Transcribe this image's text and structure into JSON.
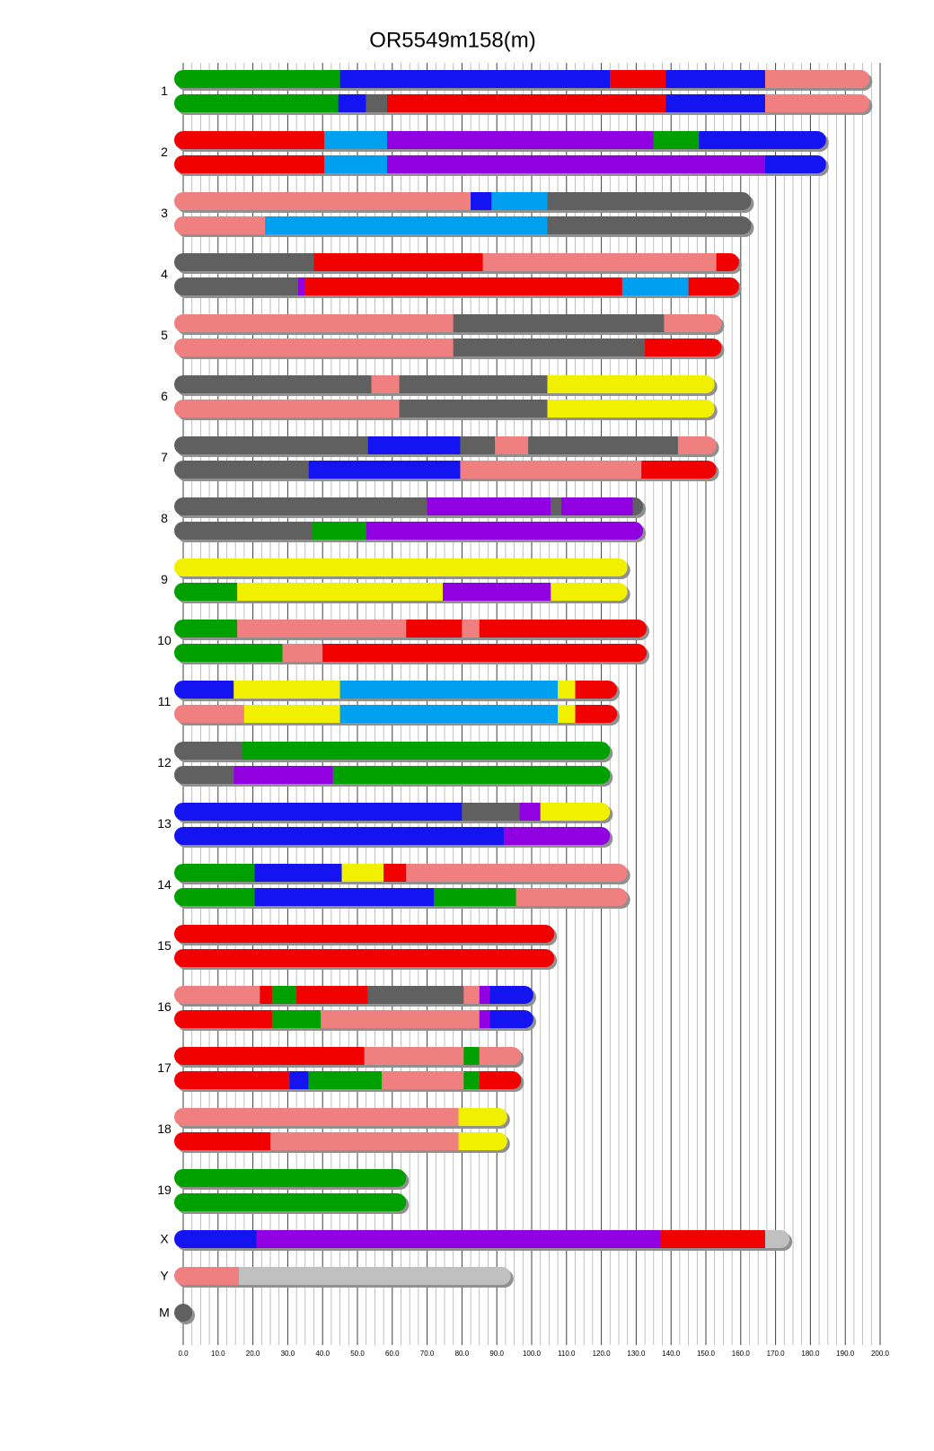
{
  "chart_data": {
    "type": "ideogram",
    "title": "OR5549m158(m)",
    "xlim": [
      0,
      200
    ],
    "xticks": [
      {
        "value": 0,
        "label": "0.0"
      },
      {
        "value": 10,
        "label": "10.0"
      },
      {
        "value": 20,
        "label": "20.0"
      },
      {
        "value": 30,
        "label": "30.0"
      },
      {
        "value": 40,
        "label": "40.0"
      },
      {
        "value": 50,
        "label": "50.0"
      },
      {
        "value": 60,
        "label": "60.0"
      },
      {
        "value": 70,
        "label": "70.0"
      },
      {
        "value": 80,
        "label": "80.0"
      },
      {
        "value": 90,
        "label": "90.0"
      },
      {
        "value": 100,
        "label": "100.0"
      },
      {
        "value": 110,
        "label": "110.0"
      },
      {
        "value": 120,
        "label": "120.0"
      },
      {
        "value": 130,
        "label": "130.0"
      },
      {
        "value": 140,
        "label": "140.0"
      },
      {
        "value": 150,
        "label": "150.0"
      },
      {
        "value": 160,
        "label": "160.0"
      },
      {
        "value": 170,
        "label": "170.0"
      },
      {
        "value": 180,
        "label": "180.0"
      },
      {
        "value": 190,
        "label": "190.0"
      },
      {
        "value": 200,
        "label": "200.0"
      }
    ],
    "grid": true,
    "chromosomes": [
      {
        "name": "1",
        "tracks": [
          {
            "lengths": [
              45,
              77.5,
              16,
              28.5,
              30
            ],
            "colors": [
              "#00a000",
              "#1414f0",
              "#f00000",
              "#1414f0",
              "#f08080"
            ]
          },
          {
            "lengths": [
              44.5,
              8,
              6,
              80,
              28.5,
              30
            ],
            "colors": [
              "#00a000",
              "#1414f0",
              "#606060",
              "#f00000",
              "#1414f0",
              "#f08080"
            ]
          }
        ]
      },
      {
        "name": "2",
        "tracks": [
          {
            "lengths": [
              40.5,
              18,
              76.5,
              13,
              36.5
            ],
            "colors": [
              "#f00000",
              "#00a0f0",
              "#9000e0",
              "#00a000",
              "#1414f0"
            ]
          },
          {
            "lengths": [
              40.5,
              18,
              108.5,
              17.5
            ],
            "colors": [
              "#f00000",
              "#00a0f0",
              "#9000e0",
              "#1414f0"
            ]
          }
        ]
      },
      {
        "name": "3",
        "tracks": [
          {
            "lengths": [
              82.5,
              6,
              16,
              58.5
            ],
            "colors": [
              "#f08080",
              "#1414f0",
              "#00a0f0",
              "#606060"
            ]
          },
          {
            "lengths": [
              23.5,
              81,
              58.5
            ],
            "colors": [
              "#f08080",
              "#00a0f0",
              "#606060"
            ]
          }
        ]
      },
      {
        "name": "4",
        "tracks": [
          {
            "lengths": [
              37.5,
              48.5,
              67,
              6.5
            ],
            "colors": [
              "#606060",
              "#f00000",
              "#f08080",
              "#f00000"
            ]
          },
          {
            "lengths": [
              33,
              2,
              91,
              19,
              14.5
            ],
            "colors": [
              "#606060",
              "#9000e0",
              "#f00000",
              "#00a0f0",
              "#f00000"
            ]
          }
        ]
      },
      {
        "name": "5",
        "tracks": [
          {
            "lengths": [
              77.5,
              60.5,
              16.5
            ],
            "colors": [
              "#f08080",
              "#606060",
              "#f08080"
            ]
          },
          {
            "lengths": [
              77.5,
              55,
              22
            ],
            "colors": [
              "#f08080",
              "#606060",
              "#f00000"
            ]
          }
        ]
      },
      {
        "name": "6",
        "tracks": [
          {
            "lengths": [
              54,
              8,
              42.5,
              48
            ],
            "colors": [
              "#606060",
              "#f08080",
              "#606060",
              "#f0f000"
            ]
          },
          {
            "lengths": [
              62,
              42.5,
              48
            ],
            "colors": [
              "#f08080",
              "#606060",
              "#f0f000"
            ]
          }
        ]
      },
      {
        "name": "7",
        "tracks": [
          {
            "lengths": [
              53,
              26.5,
              10,
              9.5,
              43,
              11
            ],
            "colors": [
              "#606060",
              "#1414f0",
              "#606060",
              "#f08080",
              "#606060",
              "#f08080"
            ]
          },
          {
            "lengths": [
              36,
              43.5,
              52,
              21.5
            ],
            "colors": [
              "#606060",
              "#1414f0",
              "#f08080",
              "#f00000"
            ]
          }
        ]
      },
      {
        "name": "8",
        "tracks": [
          {
            "lengths": [
              70,
              35.5,
              3,
              20.5,
              3
            ],
            "colors": [
              "#606060",
              "#9000e0",
              "#606060",
              "#9000e0",
              "#606060"
            ]
          },
          {
            "lengths": [
              37,
              15.5,
              79.5
            ],
            "colors": [
              "#606060",
              "#00a000",
              "#9000e0"
            ]
          }
        ]
      },
      {
        "name": "9",
        "tracks": [
          {
            "lengths": [
              127.5
            ],
            "colors": [
              "#f0f000"
            ]
          },
          {
            "lengths": [
              15.5,
              59,
              31,
              22
            ],
            "colors": [
              "#00a000",
              "#f0f000",
              "#9000e0",
              "#f0f000"
            ]
          }
        ]
      },
      {
        "name": "10",
        "tracks": [
          {
            "lengths": [
              15.5,
              48.5,
              16,
              5,
              48
            ],
            "colors": [
              "#00a000",
              "#f08080",
              "#f00000",
              "#f08080",
              "#f00000"
            ]
          },
          {
            "lengths": [
              28.5,
              11.5,
              93
            ],
            "colors": [
              "#00a000",
              "#f08080",
              "#f00000"
            ]
          }
        ]
      },
      {
        "name": "11",
        "tracks": [
          {
            "lengths": [
              14.5,
              30.5,
              62.5,
              5,
              12
            ],
            "colors": [
              "#1414f0",
              "#f0f000",
              "#00a0f0",
              "#f0f000",
              "#f00000"
            ]
          },
          {
            "lengths": [
              17.5,
              27.5,
              62.5,
              5,
              12
            ],
            "colors": [
              "#f08080",
              "#f0f000",
              "#00a0f0",
              "#f0f000",
              "#f00000"
            ]
          }
        ]
      },
      {
        "name": "12",
        "tracks": [
          {
            "lengths": [
              17,
              105.5
            ],
            "colors": [
              "#606060",
              "#00a000"
            ]
          },
          {
            "lengths": [
              14.5,
              28.5,
              79.5
            ],
            "colors": [
              "#606060",
              "#9000e0",
              "#00a000"
            ]
          }
        ]
      },
      {
        "name": "13",
        "tracks": [
          {
            "lengths": [
              80,
              16.5,
              6,
              20
            ],
            "colors": [
              "#1414f0",
              "#606060",
              "#9000e0",
              "#f0f000"
            ]
          },
          {
            "lengths": [
              92,
              30.5
            ],
            "colors": [
              "#1414f0",
              "#9000e0"
            ]
          }
        ]
      },
      {
        "name": "14",
        "tracks": [
          {
            "lengths": [
              20.5,
              25,
              12,
              6.5,
              63.5
            ],
            "colors": [
              "#00a000",
              "#1414f0",
              "#f0f000",
              "#f00000",
              "#f08080"
            ]
          },
          {
            "lengths": [
              20.5,
              51.5,
              23.5,
              32
            ],
            "colors": [
              "#00a000",
              "#1414f0",
              "#00a000",
              "#f08080"
            ]
          }
        ]
      },
      {
        "name": "15",
        "tracks": [
          {
            "lengths": [
              106.5
            ],
            "colors": [
              "#f00000"
            ]
          },
          {
            "lengths": [
              106.5
            ],
            "colors": [
              "#f00000"
            ]
          }
        ]
      },
      {
        "name": "16",
        "tracks": [
          {
            "lengths": [
              22,
              3.5,
              7,
              20.5,
              27.5,
              4.5,
              3,
              12.5
            ],
            "colors": [
              "#f08080",
              "#f00000",
              "#00a000",
              "#f00000",
              "#606060",
              "#f08080",
              "#9000e0",
              "#1414f0"
            ]
          },
          {
            "lengths": [
              25.5,
              14,
              45.5,
              3,
              12.5
            ],
            "colors": [
              "#f00000",
              "#00a000",
              "#f08080",
              "#9000e0",
              "#1414f0"
            ]
          }
        ]
      },
      {
        "name": "17",
        "tracks": [
          {
            "lengths": [
              52,
              28.5,
              4.5,
              12
            ],
            "colors": [
              "#f00000",
              "#f08080",
              "#00a000",
              "#f08080"
            ]
          },
          {
            "lengths": [
              30.5,
              5.5,
              21,
              23.5,
              4.5,
              12
            ],
            "colors": [
              "#f00000",
              "#1414f0",
              "#00a000",
              "#f08080",
              "#00a000",
              "#f00000"
            ]
          }
        ]
      },
      {
        "name": "18",
        "tracks": [
          {
            "lengths": [
              79,
              14
            ],
            "colors": [
              "#f08080",
              "#f0f000"
            ]
          },
          {
            "lengths": [
              25,
              54,
              14
            ],
            "colors": [
              "#f00000",
              "#f08080",
              "#f0f000"
            ]
          }
        ]
      },
      {
        "name": "19",
        "tracks": [
          {
            "lengths": [
              64
            ],
            "colors": [
              "#00a000"
            ]
          },
          {
            "lengths": [
              64
            ],
            "colors": [
              "#00a000"
            ]
          }
        ]
      },
      {
        "name": "X",
        "tracks": [
          {
            "lengths": [
              21,
              116,
              30,
              7
            ],
            "colors": [
              "#1414f0",
              "#9000e0",
              "#f00000",
              "#c0c0c0"
            ]
          }
        ]
      },
      {
        "name": "Y",
        "tracks": [
          {
            "lengths": [
              16,
              78
            ],
            "colors": [
              "#f08080",
              "#c0c0c0"
            ]
          }
        ]
      },
      {
        "name": "M",
        "tracks": [
          {
            "lengths": [
              0.1
            ],
            "colors": [
              "#606060"
            ]
          }
        ]
      }
    ]
  }
}
